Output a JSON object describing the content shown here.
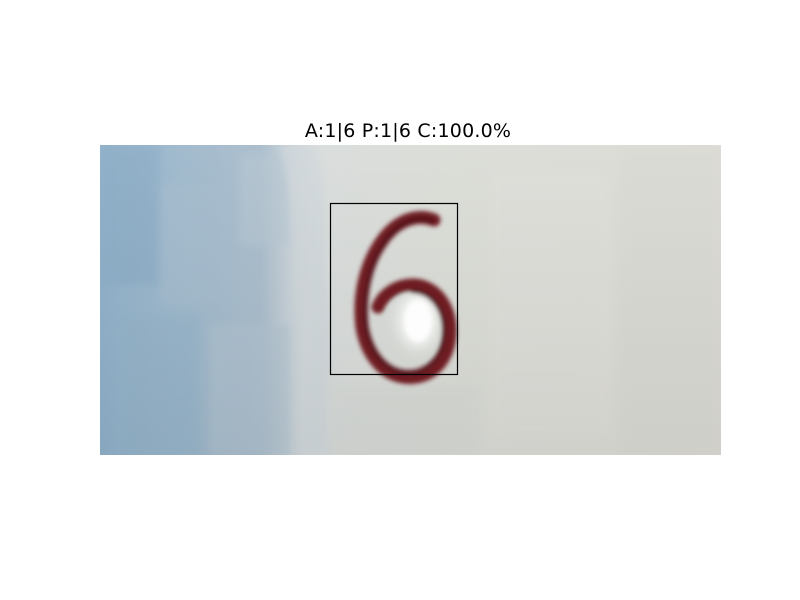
{
  "title": "A:1|6 P:1|6 C:100.0%",
  "image": {
    "depicts": "6",
    "digit_color": "#6e1f24",
    "wall_color": "#c7cfd8",
    "paper_color": "#dcdcd6",
    "box_color": "#000000"
  }
}
